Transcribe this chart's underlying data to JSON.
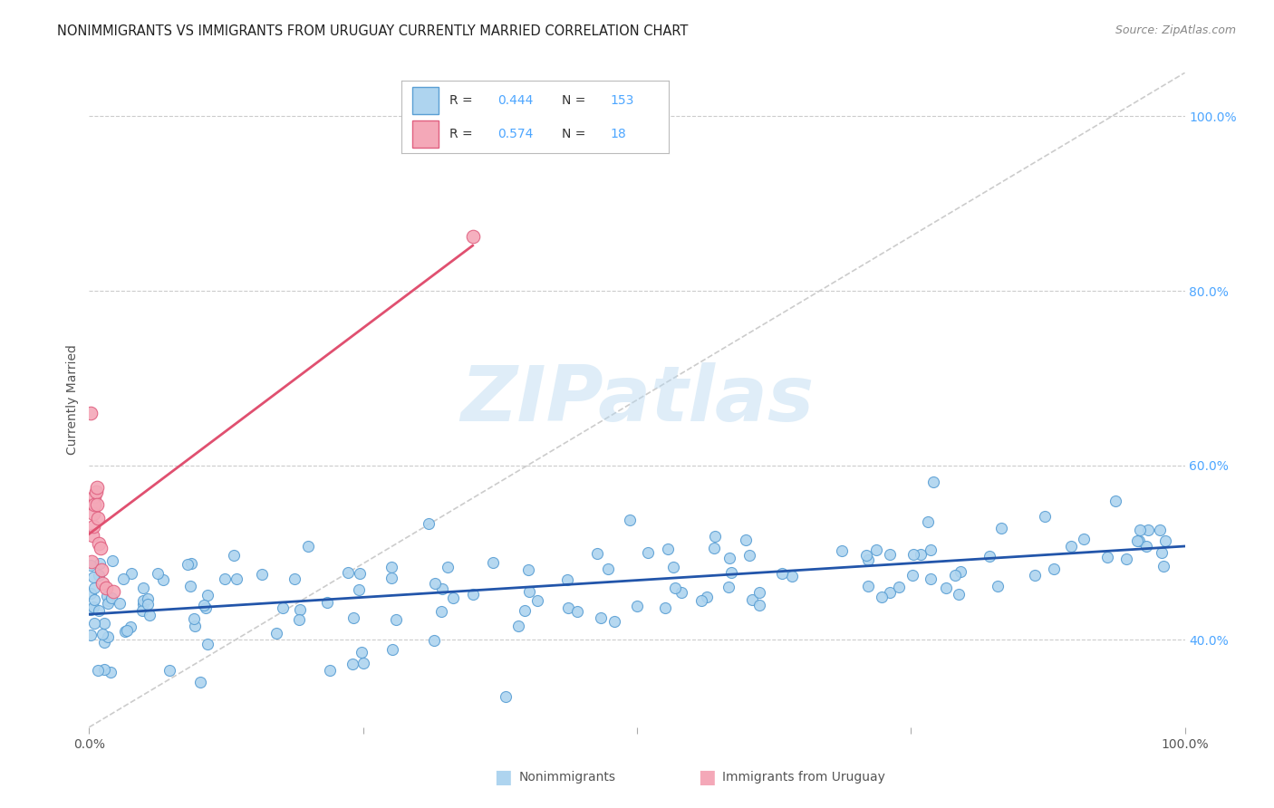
{
  "title": "NONIMMIGRANTS VS IMMIGRANTS FROM URUGUAY CURRENTLY MARRIED CORRELATION CHART",
  "source": "Source: ZipAtlas.com",
  "ylabel": "Currently Married",
  "watermark": "ZIPatlas",
  "legend_nonimm": "Nonimmigrants",
  "legend_imm": "Immigrants from Uruguay",
  "r_nonimm": 0.444,
  "n_nonimm": 153,
  "r_imm": 0.574,
  "n_imm": 18,
  "color_nonimm_face": "#aed4ef",
  "color_nonimm_edge": "#5a9fd4",
  "color_imm_face": "#f4a8b8",
  "color_imm_edge": "#e06080",
  "color_trend_nonimm": "#2255aa",
  "color_trend_imm": "#e05070",
  "color_diag": "#cccccc",
  "right_axis_color": "#4da6ff",
  "title_color": "#222222",
  "source_color": "#888888",
  "background": "#ffffff",
  "grid_color": "#cccccc",
  "xlim": [
    0.0,
    1.0
  ],
  "ylim": [
    0.3,
    1.05
  ],
  "ytick_positions": [
    0.4,
    0.6,
    0.8,
    1.0
  ],
  "ytick_labels": [
    "40.0%",
    "60.0%",
    "80.0%",
    "100.0%"
  ]
}
